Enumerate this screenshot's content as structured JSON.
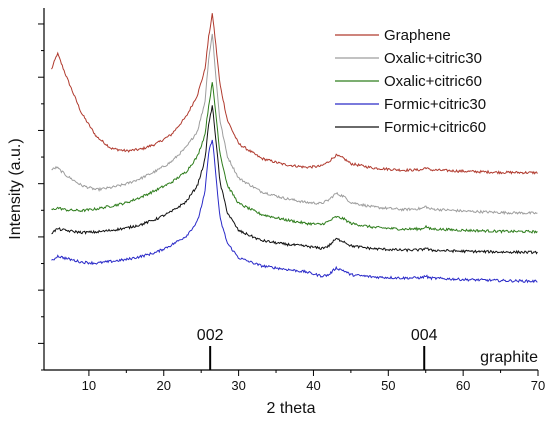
{
  "chart_data": {
    "type": "line",
    "xlabel": "2 theta",
    "ylabel": "Intensity (a.u.)",
    "xlim": [
      4,
      70
    ],
    "ylim": [
      0,
      1
    ],
    "x_ticks": [
      10,
      20,
      30,
      40,
      50,
      60,
      70
    ],
    "y_tick_labels": "none",
    "grid": false,
    "legend_placement": "top-right",
    "reference_label": "graphite",
    "reference_peaks": [
      {
        "label": "002",
        "x": 26.2
      },
      {
        "label": "004",
        "x": 54.8
      }
    ],
    "series": [
      {
        "name": "Graphene",
        "color": "#b03a2e",
        "points": [
          [
            5,
            0.83
          ],
          [
            5.8,
            0.875
          ],
          [
            7,
            0.81
          ],
          [
            9,
            0.71
          ],
          [
            11,
            0.645
          ],
          [
            13,
            0.612
          ],
          [
            15,
            0.605
          ],
          [
            17,
            0.61
          ],
          [
            19,
            0.625
          ],
          [
            21,
            0.65
          ],
          [
            23,
            0.7
          ],
          [
            24.5,
            0.76
          ],
          [
            25.5,
            0.83
          ],
          [
            26,
            0.92
          ],
          [
            26.5,
            0.985
          ],
          [
            27,
            0.89
          ],
          [
            27.5,
            0.79
          ],
          [
            28.5,
            0.69
          ],
          [
            30,
            0.625
          ],
          [
            33,
            0.585
          ],
          [
            36,
            0.568
          ],
          [
            39,
            0.56
          ],
          [
            41,
            0.563
          ],
          [
            42,
            0.575
          ],
          [
            43,
            0.593
          ],
          [
            44,
            0.585
          ],
          [
            45,
            0.57
          ],
          [
            48,
            0.558
          ],
          [
            52,
            0.552
          ],
          [
            54.5,
            0.553
          ],
          [
            55,
            0.56
          ],
          [
            55.5,
            0.553
          ],
          [
            60,
            0.549
          ],
          [
            65,
            0.546
          ],
          [
            70,
            0.545
          ]
        ]
      },
      {
        "name": "Oxalic+citric30",
        "color": "#9e9e9e",
        "points": [
          [
            5,
            0.553
          ],
          [
            5.7,
            0.56
          ],
          [
            7,
            0.537
          ],
          [
            9,
            0.51
          ],
          [
            11,
            0.498
          ],
          [
            13,
            0.504
          ],
          [
            15,
            0.514
          ],
          [
            17,
            0.53
          ],
          [
            19,
            0.55
          ],
          [
            21,
            0.575
          ],
          [
            23,
            0.615
          ],
          [
            24.5,
            0.66
          ],
          [
            25.5,
            0.74
          ],
          [
            26,
            0.86
          ],
          [
            26.5,
            0.93
          ],
          [
            27,
            0.8
          ],
          [
            27.5,
            0.69
          ],
          [
            28.5,
            0.59
          ],
          [
            30,
            0.53
          ],
          [
            33,
            0.493
          ],
          [
            36,
            0.475
          ],
          [
            39,
            0.463
          ],
          [
            41,
            0.46
          ],
          [
            42,
            0.469
          ],
          [
            43,
            0.488
          ],
          [
            44,
            0.48
          ],
          [
            45,
            0.463
          ],
          [
            48,
            0.45
          ],
          [
            52,
            0.443
          ],
          [
            54.5,
            0.446
          ],
          [
            55,
            0.452
          ],
          [
            55.5,
            0.445
          ],
          [
            60,
            0.439
          ],
          [
            65,
            0.435
          ],
          [
            70,
            0.433
          ]
        ]
      },
      {
        "name": "Oxalic+citric60",
        "color": "#2e7d1c",
        "points": [
          [
            5,
            0.442
          ],
          [
            5.8,
            0.448
          ],
          [
            7,
            0.442
          ],
          [
            9,
            0.44
          ],
          [
            11,
            0.445
          ],
          [
            13,
            0.453
          ],
          [
            15,
            0.462
          ],
          [
            17,
            0.478
          ],
          [
            19,
            0.497
          ],
          [
            21,
            0.518
          ],
          [
            23,
            0.548
          ],
          [
            24.5,
            0.59
          ],
          [
            25.5,
            0.65
          ],
          [
            26,
            0.73
          ],
          [
            26.5,
            0.795
          ],
          [
            27,
            0.7
          ],
          [
            27.5,
            0.6
          ],
          [
            28.5,
            0.51
          ],
          [
            30,
            0.46
          ],
          [
            33,
            0.43
          ],
          [
            36,
            0.416
          ],
          [
            39,
            0.405
          ],
          [
            41,
            0.402
          ],
          [
            42,
            0.41
          ],
          [
            43,
            0.423
          ],
          [
            44,
            0.418
          ],
          [
            45,
            0.405
          ],
          [
            48,
            0.394
          ],
          [
            52,
            0.389
          ],
          [
            54.5,
            0.39
          ],
          [
            55,
            0.397
          ],
          [
            55.5,
            0.39
          ],
          [
            60,
            0.386
          ],
          [
            65,
            0.383
          ],
          [
            70,
            0.382
          ]
        ]
      },
      {
        "name": "Formic+citric30",
        "color": "#2a2ac8",
        "points": [
          [
            5,
            0.3
          ],
          [
            5.8,
            0.315
          ],
          [
            7,
            0.308
          ],
          [
            9,
            0.298
          ],
          [
            11,
            0.295
          ],
          [
            13,
            0.3
          ],
          [
            15,
            0.305
          ],
          [
            17,
            0.314
          ],
          [
            19,
            0.325
          ],
          [
            21,
            0.345
          ],
          [
            23,
            0.37
          ],
          [
            24.5,
            0.41
          ],
          [
            25.5,
            0.49
          ],
          [
            26,
            0.6
          ],
          [
            26.5,
            0.64
          ],
          [
            27,
            0.53
          ],
          [
            27.5,
            0.42
          ],
          [
            28.5,
            0.35
          ],
          [
            30,
            0.31
          ],
          [
            33,
            0.288
          ],
          [
            36,
            0.279
          ],
          [
            39,
            0.271
          ],
          [
            41,
            0.26
          ],
          [
            42,
            0.262
          ],
          [
            43,
            0.282
          ],
          [
            44,
            0.275
          ],
          [
            45,
            0.263
          ],
          [
            48,
            0.257
          ],
          [
            52,
            0.254
          ],
          [
            54.5,
            0.255
          ],
          [
            55,
            0.26
          ],
          [
            55.5,
            0.254
          ],
          [
            60,
            0.25
          ],
          [
            65,
            0.247
          ],
          [
            70,
            0.245
          ]
        ]
      },
      {
        "name": "Formic+citric60",
        "color": "#111111",
        "points": [
          [
            5,
            0.378
          ],
          [
            5.8,
            0.39
          ],
          [
            7,
            0.385
          ],
          [
            9,
            0.38
          ],
          [
            11,
            0.381
          ],
          [
            13,
            0.386
          ],
          [
            15,
            0.392
          ],
          [
            17,
            0.402
          ],
          [
            19,
            0.417
          ],
          [
            21,
            0.437
          ],
          [
            23,
            0.465
          ],
          [
            24.5,
            0.51
          ],
          [
            25.5,
            0.58
          ],
          [
            26,
            0.68
          ],
          [
            26.5,
            0.73
          ],
          [
            27,
            0.63
          ],
          [
            27.5,
            0.52
          ],
          [
            28.5,
            0.435
          ],
          [
            30,
            0.385
          ],
          [
            33,
            0.358
          ],
          [
            36,
            0.348
          ],
          [
            39,
            0.342
          ],
          [
            41,
            0.336
          ],
          [
            42,
            0.342
          ],
          [
            43,
            0.362
          ],
          [
            44,
            0.356
          ],
          [
            45,
            0.343
          ],
          [
            48,
            0.335
          ],
          [
            52,
            0.331
          ],
          [
            54.5,
            0.332
          ],
          [
            55,
            0.338
          ],
          [
            55.5,
            0.331
          ],
          [
            60,
            0.328
          ],
          [
            65,
            0.326
          ],
          [
            70,
            0.325
          ]
        ]
      }
    ]
  }
}
